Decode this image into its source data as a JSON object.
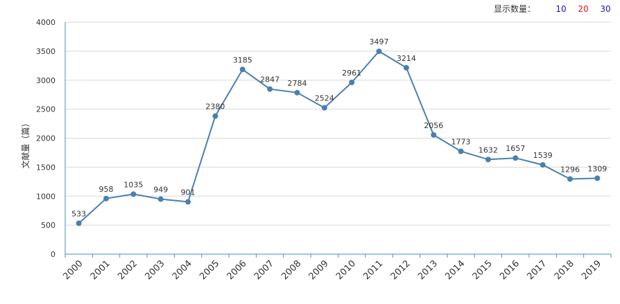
{
  "controls": {
    "label": "显示数量：",
    "options": [
      {
        "label": "10",
        "color": "#1a0dcc"
      },
      {
        "label": "20",
        "color": "#e8101b"
      },
      {
        "label": "30",
        "color": "#1a0dcc"
      }
    ]
  },
  "colors": {
    "line": "#4a7fb1",
    "axis": "#3f8fc1",
    "grid": "#d9d9d9",
    "text": "#333333"
  },
  "chart_data": {
    "type": "line",
    "title": "",
    "xlabel": "",
    "ylabel": "文献量（篇）",
    "ylim": [
      0,
      4000
    ],
    "yticks": [
      0,
      500,
      1000,
      1500,
      2000,
      2500,
      3000,
      3500,
      4000
    ],
    "grid": true,
    "categories": [
      "2000",
      "2001",
      "2002",
      "2003",
      "2004",
      "2005",
      "2006",
      "2007",
      "2008",
      "2009",
      "2010",
      "2011",
      "2012",
      "2013",
      "2014",
      "2015",
      "2016",
      "2017",
      "2018",
      "2019"
    ],
    "values": [
      533,
      958,
      1035,
      949,
      901,
      2380,
      3185,
      2847,
      2784,
      2524,
      2961,
      3497,
      3214,
      2056,
      1773,
      1632,
      1657,
      1539,
      1296,
      1309
    ],
    "data_labels": [
      "533",
      "958",
      "1035",
      "949",
      "901",
      "2380",
      "3185",
      "2847",
      "2784",
      "2524",
      "2961",
      "3497",
      "3214",
      "2056",
      "1773",
      "1632",
      "1657",
      "1539",
      "1296",
      "1309"
    ]
  }
}
